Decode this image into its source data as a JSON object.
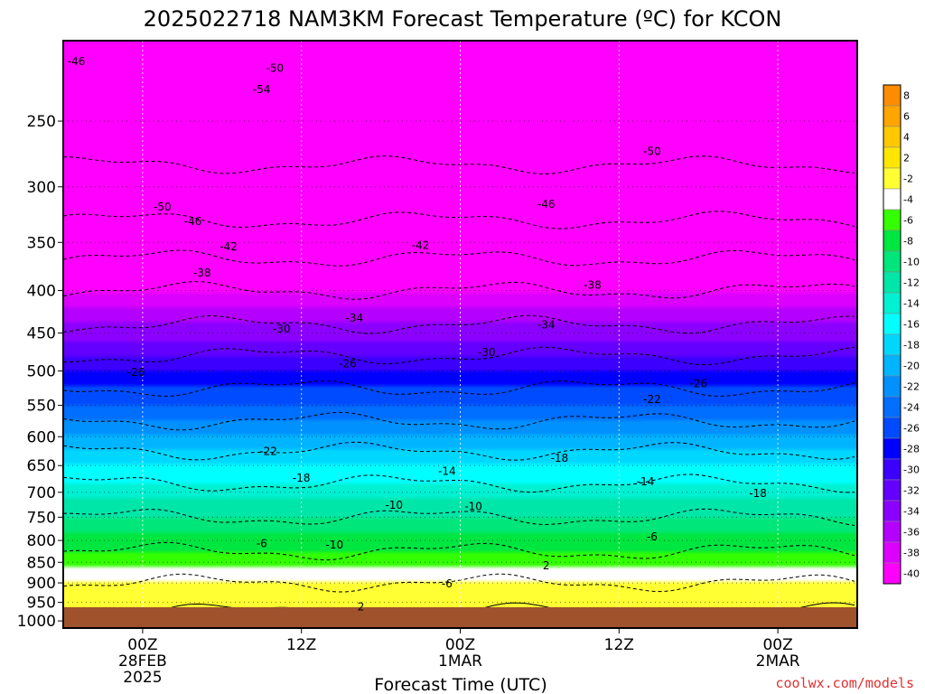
{
  "chart_data": {
    "type": "heatmap",
    "title": "2025022718 NAM3KM Forecast Temperature (ºC) for KCON",
    "xlabel": "Forecast Time (UTC)",
    "ylabel": "",
    "x_ticks": [
      {
        "line1": "00Z",
        "line2": "28FEB",
        "line3": "2025"
      },
      {
        "line1": "12Z",
        "line2": "",
        "line3": ""
      },
      {
        "line1": "00Z",
        "line2": "1MAR",
        "line3": ""
      },
      {
        "line1": "12Z",
        "line2": "",
        "line3": ""
      },
      {
        "line1": "00Z",
        "line2": "2MAR",
        "line3": ""
      }
    ],
    "x_tick_times": [
      6,
      18,
      30,
      42,
      54
    ],
    "x_range": [
      0,
      60
    ],
    "y_ticks": [
      "250",
      "300",
      "350",
      "400",
      "450",
      "500",
      "550",
      "600",
      "650",
      "700",
      "750",
      "800",
      "850",
      "900",
      "950",
      "1000"
    ],
    "y_range_hpa": [
      200,
      1020
    ],
    "y_scale": "log",
    "grid": true,
    "colorbar_levels": [
      "8",
      "6",
      "4",
      "2",
      "-2",
      "-4",
      "-6",
      "-8",
      "-10",
      "-12",
      "-14",
      "-16",
      "-18",
      "-20",
      "-22",
      "-24",
      "-26",
      "-28",
      "-30",
      "-32",
      "-34",
      "-36",
      "-38",
      "-40"
    ],
    "colorbar_colors": [
      "#ff8c00",
      "#ffa500",
      "#ffc800",
      "#ffe600",
      "#ffff33",
      "#ffffff",
      "#33ff00",
      "#00e640",
      "#00e67a",
      "#00e6a8",
      "#00f0d2",
      "#00ffff",
      "#00d7ff",
      "#00b4ff",
      "#0091ff",
      "#006eff",
      "#004bff",
      "#0000ff",
      "#3c00ff",
      "#6400ff",
      "#8c00ff",
      "#b400ff",
      "#dc00ff",
      "#ff00ff"
    ],
    "temperature_profile": {
      "pressure_hpa": [
        1000,
        950,
        900,
        850,
        800,
        750,
        700,
        650,
        600,
        550,
        500,
        450,
        400,
        350,
        300,
        250,
        200
      ],
      "temp_c": [
        3,
        1,
        -2,
        -5,
        -7,
        -10,
        -13,
        -16,
        -20,
        -24,
        -28,
        -33,
        -38,
        -44,
        -49,
        -52,
        -54
      ]
    },
    "contour_labels": [
      {
        "text": "-46",
        "t": 1.0,
        "p": 212
      },
      {
        "text": "-50",
        "t": 16.0,
        "p": 216
      },
      {
        "text": "-54",
        "t": 15.0,
        "p": 229
      },
      {
        "text": "-50",
        "t": 7.5,
        "p": 317
      },
      {
        "text": "-46",
        "t": 9.8,
        "p": 330
      },
      {
        "text": "-42",
        "t": 12.5,
        "p": 354
      },
      {
        "text": "-38",
        "t": 10.5,
        "p": 381
      },
      {
        "text": "-42",
        "t": 27.0,
        "p": 353
      },
      {
        "text": "-46",
        "t": 36.5,
        "p": 315
      },
      {
        "text": "-50",
        "t": 44.5,
        "p": 272
      },
      {
        "text": "-38",
        "t": 40.0,
        "p": 394
      },
      {
        "text": "-34",
        "t": 22.0,
        "p": 432
      },
      {
        "text": "-30",
        "t": 16.5,
        "p": 445
      },
      {
        "text": "-30",
        "t": 32.0,
        "p": 475
      },
      {
        "text": "-34",
        "t": 36.5,
        "p": 440
      },
      {
        "text": "-26",
        "t": 21.5,
        "p": 490
      },
      {
        "text": "-26",
        "t": 5.5,
        "p": 502
      },
      {
        "text": "-26",
        "t": 48.0,
        "p": 518
      },
      {
        "text": "-22",
        "t": 44.5,
        "p": 541
      },
      {
        "text": "-22",
        "t": 15.5,
        "p": 625
      },
      {
        "text": "-18",
        "t": 18.0,
        "p": 673
      },
      {
        "text": "-18",
        "t": 37.5,
        "p": 637
      },
      {
        "text": "-18",
        "t": 52.5,
        "p": 702
      },
      {
        "text": "-14",
        "t": 29.0,
        "p": 660
      },
      {
        "text": "-14",
        "t": 44.0,
        "p": 680
      },
      {
        "text": "-10",
        "t": 25.0,
        "p": 725
      },
      {
        "text": "-10",
        "t": 31.0,
        "p": 728
      },
      {
        "text": "-10",
        "t": 20.5,
        "p": 810
      },
      {
        "text": "-6",
        "t": 15.0,
        "p": 807
      },
      {
        "text": "-6",
        "t": 44.5,
        "p": 792
      },
      {
        "text": "-6",
        "t": 29.0,
        "p": 902
      },
      {
        "text": "2",
        "t": 36.5,
        "p": 858
      },
      {
        "text": "2",
        "t": 22.5,
        "p": 962
      }
    ]
  },
  "branding": {
    "credit": "coolwx.com/models"
  }
}
